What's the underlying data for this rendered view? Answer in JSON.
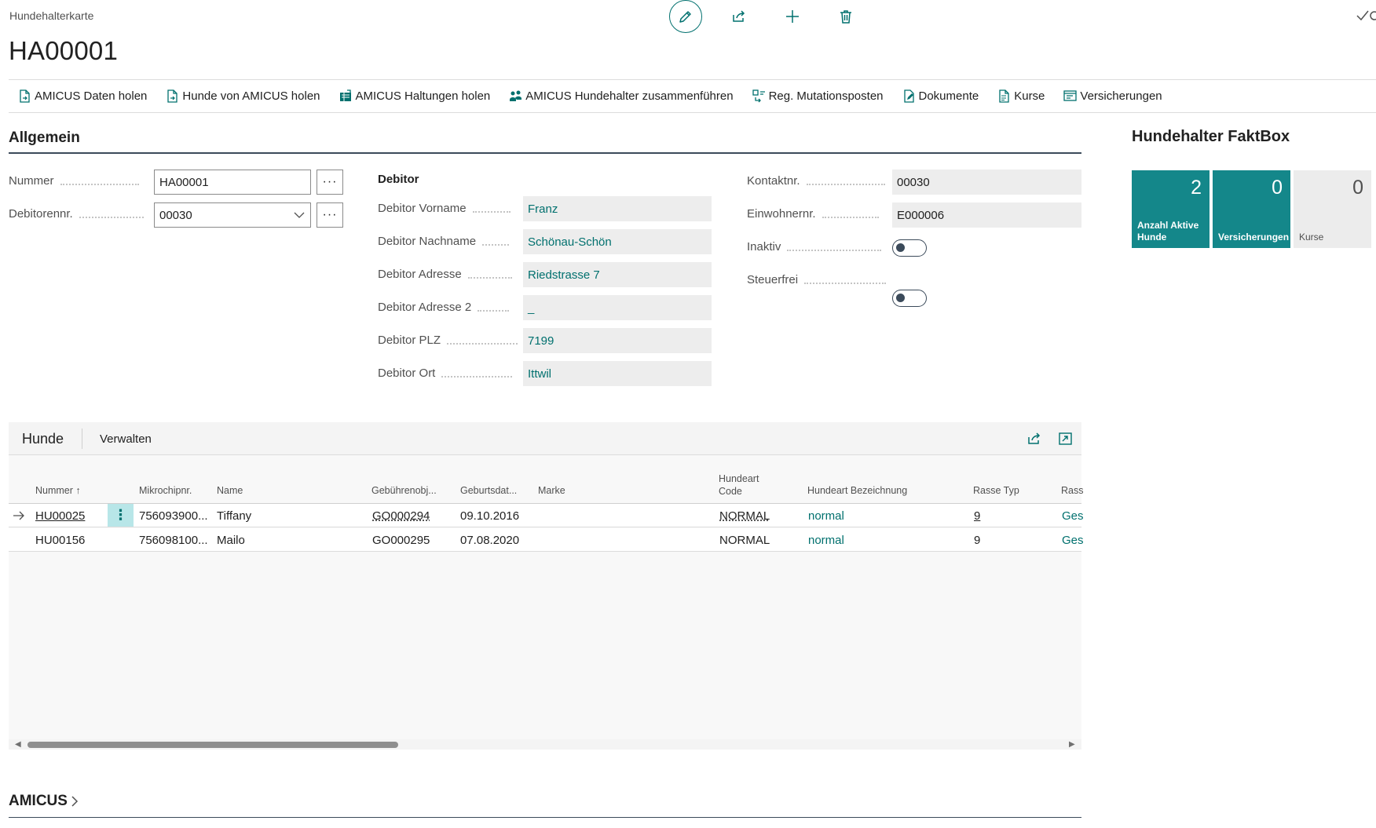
{
  "header": {
    "breadcrumb": "Hundehalterkarte",
    "title": "HA00001",
    "actions": [
      "edit-icon",
      "share-icon",
      "add-icon",
      "delete-icon"
    ]
  },
  "action_bar": [
    {
      "label": "AMICUS Daten holen",
      "icon": "document-import-icon"
    },
    {
      "label": "Hunde von AMICUS holen",
      "icon": "document-import-icon"
    },
    {
      "label": "AMICUS Haltungen holen",
      "icon": "table-import-icon"
    },
    {
      "label": "AMICUS Hundehalter zusammenführen",
      "icon": "people-merge-icon"
    },
    {
      "label": "Reg. Mutationsposten",
      "icon": "register-icon"
    },
    {
      "label": "Dokumente",
      "icon": "document-edit-icon"
    },
    {
      "label": "Kurse",
      "icon": "document-list-icon"
    },
    {
      "label": "Versicherungen",
      "icon": "policy-icon"
    }
  ],
  "general": {
    "title": "Allgemein",
    "nummer": {
      "label": "Nummer",
      "value": "HA00001"
    },
    "debitorennr": {
      "label": "Debitorennr.",
      "value": "00030"
    },
    "debitor": {
      "heading": "Debitor",
      "vorname": {
        "label": "Debitor Vorname",
        "value": "Franz"
      },
      "nachname": {
        "label": "Debitor Nachname",
        "value": "Schönau-Schön"
      },
      "adresse": {
        "label": "Debitor Adresse",
        "value": "Riedstrasse 7"
      },
      "adresse2": {
        "label": "Debitor Adresse 2",
        "value": "_"
      },
      "plz": {
        "label": "Debitor PLZ",
        "value": "7199"
      },
      "ort": {
        "label": "Debitor Ort",
        "value": "Ittwil"
      }
    },
    "kontaktnr": {
      "label": "Kontaktnr.",
      "value": "00030"
    },
    "einwohnernr": {
      "label": "Einwohnernr.",
      "value": "E000006"
    },
    "inaktiv": {
      "label": "Inaktiv",
      "value": false
    },
    "steuerfrei": {
      "label": "Steuerfrei",
      "value": false
    },
    "assist_label": "···"
  },
  "factbox": {
    "title": "Hundehalter FaktBox",
    "tiles": [
      {
        "value": "2",
        "label1": "Anzahl Aktive",
        "label2": "Hunde",
        "color": "#14878a"
      },
      {
        "value": "0",
        "label1": "Versicherungen",
        "label2": "",
        "color": "#14878a"
      },
      {
        "value": "0",
        "label1": "Kurse",
        "label2": "",
        "color": "#ececec"
      }
    ]
  },
  "hunde": {
    "tab_active": "Hunde",
    "tab_secondary": "Verwalten",
    "columns": {
      "nummer": "Nummer ↑",
      "mikrochip": "Mikrochipnr.",
      "name": "Name",
      "gebuehr": "Gebührenobj...",
      "geburt": "Geburtsdat...",
      "marke": "Marke",
      "hundeart_code_1": "Hundeart",
      "hundeart_code_2": "Code",
      "hundeart_bez": "Hundeart Bezeichnung",
      "rasse_typ": "Rasse Typ",
      "rasse": "Rass"
    },
    "rows": [
      {
        "nummer": "HU00025",
        "mikrochip": "756093900...",
        "name": "Tiffany",
        "gebuehr": "GO000294",
        "geburt": "09.10.2016",
        "marke": "",
        "code": "NORMAL",
        "bez": "normal",
        "rasse_typ": "9",
        "rasse": "Ges"
      },
      {
        "nummer": "HU00156",
        "mikrochip": "756098100...",
        "name": "Mailo",
        "gebuehr": "GO000295",
        "geburt": "07.08.2020",
        "marke": "",
        "code": "NORMAL",
        "bez": "normal",
        "rasse_typ": "9",
        "rasse": "Ges"
      }
    ],
    "row_menu": "⋮"
  },
  "amicus": {
    "title": "AMICUS"
  },
  "colors": {
    "accent": "#00706e",
    "tile": "#14878a",
    "readonly_bg": "#ededed"
  }
}
